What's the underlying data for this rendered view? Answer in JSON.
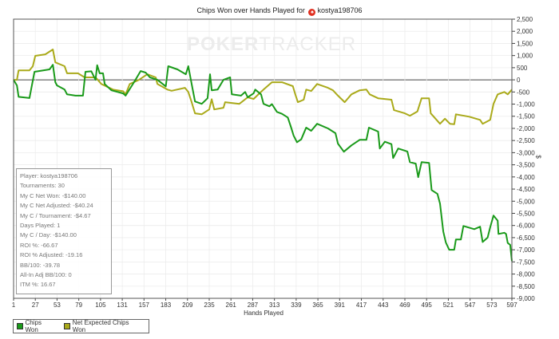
{
  "chart_data": {
    "type": "line",
    "title": "Chips Won over Hands Played for",
    "player": "kostya198706",
    "watermark": [
      "POKER",
      "TRACKER"
    ],
    "xlabel": "Hands Played",
    "ylabel": "$",
    "xlim": [
      1,
      597
    ],
    "ylim": [
      -9000,
      2500
    ],
    "x_ticks": [
      1,
      27,
      53,
      79,
      105,
      131,
      157,
      183,
      209,
      235,
      261,
      287,
      313,
      339,
      365,
      391,
      417,
      443,
      469,
      495,
      521,
      547,
      573,
      597
    ],
    "y_ticks": [
      2500,
      2000,
      1500,
      1000,
      500,
      0,
      -500,
      -1000,
      -1500,
      -2000,
      -2500,
      -3000,
      -3500,
      -4000,
      -4500,
      -5000,
      -5500,
      -6000,
      -6500,
      -7000,
      -7500,
      -8000,
      -8500,
      -9000
    ],
    "y_tick_labels": [
      "2,500",
      "2,000",
      "1,500",
      "1,000",
      "500",
      "0",
      "-500",
      "-1,000",
      "-1,500",
      "-2,000",
      "-2,500",
      "-3,000",
      "-3,500",
      "-4,000",
      "-4,500",
      "-5,000",
      "-5,500",
      "-6,000",
      "-6,500",
      "-7,000",
      "-7,500",
      "-8,000",
      "-8,500",
      "-9,000"
    ],
    "grid": true,
    "legend_position": "bottom-left",
    "series": [
      {
        "name": "Chips Won",
        "color": "#1a9a1a",
        "x": [
          1,
          5,
          7,
          20,
          26,
          44,
          48,
          51,
          53,
          62,
          65,
          75,
          84,
          87,
          94,
          99,
          101,
          104,
          108,
          110,
          118,
          132,
          135,
          145,
          153,
          159,
          164,
          173,
          183,
          186,
          197,
          207,
          210,
          214,
          218,
          226,
          233,
          236,
          238,
          245,
          252,
          260,
          262,
          273,
          278,
          281,
          288,
          290,
          297,
          300,
          307,
          310,
          316,
          322,
          329,
          333,
          336,
          340,
          345,
          351,
          357,
          364,
          377,
          386,
          389,
          396,
          405,
          415,
          423,
          426,
          437,
          439,
          445,
          453,
          455,
          461,
          472,
          475,
          482,
          485,
          489,
          498,
          501,
          508,
          511,
          515,
          518,
          522,
          528,
          530,
          536,
          539,
          552,
          559,
          562,
          568,
          571,
          575,
          580,
          581,
          588,
          590,
          592,
          595,
          597
        ],
        "y": [
          0,
          -230,
          -700,
          -750,
          330,
          430,
          620,
          -100,
          -230,
          -400,
          -600,
          -650,
          -650,
          330,
          350,
          0,
          600,
          270,
          270,
          -170,
          -430,
          -560,
          -650,
          -100,
          360,
          300,
          100,
          0,
          -270,
          560,
          430,
          230,
          560,
          -170,
          -890,
          -990,
          -760,
          230,
          -430,
          -400,
          0,
          100,
          -600,
          -650,
          -500,
          -720,
          -560,
          -400,
          -600,
          -990,
          -1090,
          -1000,
          -1320,
          -1400,
          -1550,
          -1970,
          -2300,
          -2570,
          -2450,
          -1970,
          -2100,
          -1810,
          -2000,
          -2200,
          -2630,
          -2960,
          -2700,
          -2470,
          -2470,
          -1970,
          -2130,
          -2830,
          -2550,
          -2650,
          -3220,
          -2830,
          -2950,
          -3390,
          -3450,
          -4010,
          -3390,
          -3420,
          -4540,
          -4700,
          -5100,
          -6250,
          -6700,
          -7000,
          -7000,
          -6580,
          -6580,
          -6020,
          -6150,
          -6050,
          -6680,
          -6500,
          -6080,
          -5590,
          -5800,
          -6350,
          -6300,
          -6350,
          -6720,
          -6800,
          -7470
        ]
      },
      {
        "name": "Net Expected Chips Won",
        "color": "#aaaa1a",
        "x": [
          1,
          5,
          7,
          20,
          24,
          27,
          39,
          48,
          51,
          62,
          65,
          78,
          86,
          99,
          101,
          106,
          120,
          132,
          135,
          140,
          151,
          161,
          171,
          173,
          185,
          190,
          206,
          210,
          214,
          218,
          226,
          235,
          238,
          241,
          252,
          254,
          271,
          281,
          288,
          295,
          300,
          310,
          322,
          335,
          338,
          341,
          348,
          351,
          357,
          364,
          377,
          383,
          389,
          397,
          405,
          415,
          423,
          427,
          437,
          453,
          456,
          469,
          475,
          484,
          489,
          498,
          500,
          511,
          517,
          523,
          528,
          530,
          546,
          559,
          562,
          571,
          575,
          580,
          588,
          592,
          597
        ],
        "y": [
          0,
          0,
          390,
          390,
          560,
          990,
          1050,
          1250,
          720,
          560,
          270,
          270,
          100,
          100,
          30,
          -170,
          -400,
          -470,
          -600,
          -170,
          0,
          230,
          100,
          -170,
          -400,
          -450,
          -330,
          -500,
          -920,
          -1380,
          -1420,
          -1220,
          -800,
          -1220,
          -1150,
          -920,
          -990,
          -720,
          -790,
          -560,
          -400,
          -100,
          -100,
          -260,
          -600,
          -920,
          -820,
          -400,
          -460,
          -170,
          -330,
          -430,
          -650,
          -920,
          -600,
          -430,
          -400,
          -600,
          -760,
          -820,
          -1250,
          -1380,
          -1480,
          -1300,
          -760,
          -760,
          -1380,
          -1810,
          -1600,
          -1810,
          -1830,
          -1420,
          -1520,
          -1650,
          -1810,
          -1650,
          -990,
          -600,
          -500,
          -600,
          -400
        ]
      }
    ]
  },
  "stats": [
    "Player: kostya198706",
    "Tournaments: 30",
    "My C Net Won: -$140.00",
    "My C Net Adjusted: -$40.24",
    "My C / Tournament: -$4.67",
    "Days Played: 1",
    "My C / Day: -$140.00",
    "ROI %: -66.67",
    "ROI % Adjusted: -19.16",
    "BB/100: -39.78",
    "All-In Adj BB/100: 0",
    "ITM %: 16.67"
  ]
}
